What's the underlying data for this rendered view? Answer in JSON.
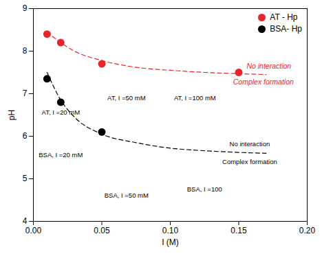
{
  "chart_data": {
    "type": "scatter",
    "x_label": "I (M)",
    "y_label": "pH",
    "xlim": [
      0,
      0.2
    ],
    "xticks": [
      {
        "value": 0,
        "label": "0.00"
      },
      {
        "value": 0.05,
        "label": "0.05"
      },
      {
        "value": 0.1,
        "label": "0.10"
      },
      {
        "value": 0.15,
        "label": "0.15"
      },
      {
        "value": 0.2,
        "label": "0.20"
      }
    ],
    "ylim": [
      4,
      9
    ],
    "yticks": [
      4,
      5,
      6,
      7,
      8,
      9
    ],
    "legend": "upper right",
    "series": [
      {
        "name": "AT - Hp",
        "color": "#e8262a",
        "marker": "circle",
        "x": [
          0.01,
          0.02,
          0.05,
          0.15
        ],
        "values": [
          8.4,
          8.2,
          7.7,
          7.5
        ]
      },
      {
        "name": "BSA- Hp",
        "color": "#000000",
        "marker": "circle",
        "x": [
          0.01,
          0.02,
          0.05
        ],
        "values": [
          7.35,
          6.8,
          6.1
        ]
      }
    ],
    "fit_lines": [
      {
        "color": "#e8262a",
        "line_style": "dashed",
        "x": [
          0.01,
          0.02,
          0.03,
          0.05,
          0.075,
          0.1,
          0.125,
          0.15,
          0.17
        ],
        "values": [
          8.45,
          8.2,
          8.0,
          7.78,
          7.62,
          7.55,
          7.5,
          7.47,
          7.45
        ]
      },
      {
        "color": "#000000",
        "line_style": "dashed",
        "x": [
          0.01,
          0.02,
          0.03,
          0.05,
          0.075,
          0.1,
          0.125,
          0.15,
          0.17
        ],
        "values": [
          7.5,
          6.85,
          6.45,
          6.05,
          5.85,
          5.72,
          5.66,
          5.62,
          5.6
        ]
      }
    ],
    "annotations": [
      {
        "text": "No interaction",
        "x": 0.172,
        "y": 7.65,
        "color": "#e8262a"
      },
      {
        "text": "Complex formation",
        "x": 0.168,
        "y": 7.27,
        "color": "#e8262a"
      },
      {
        "text": "No interaction",
        "x": 0.158,
        "y": 5.82,
        "color": "#000000"
      },
      {
        "text": "Complex formation",
        "x": 0.158,
        "y": 5.4,
        "color": "#000000"
      },
      {
        "text": "AT, I =20 mM",
        "x": 0.02,
        "y": 6.55,
        "color": "#000000"
      },
      {
        "text": "AT, I =50 mM",
        "x": 0.068,
        "y": 6.9,
        "color": "#000000"
      },
      {
        "text": "AT, I =100 mM",
        "x": 0.118,
        "y": 6.9,
        "color": "#000000"
      },
      {
        "text": "BSA, I =20 mM",
        "x": 0.02,
        "y": 5.55,
        "color": "#000000"
      },
      {
        "text": "BSA, I =50 mM",
        "x": 0.068,
        "y": 4.6,
        "color": "#000000"
      },
      {
        "text": "BSA, I =100",
        "x": 0.125,
        "y": 4.75,
        "color": "#000000"
      }
    ]
  }
}
